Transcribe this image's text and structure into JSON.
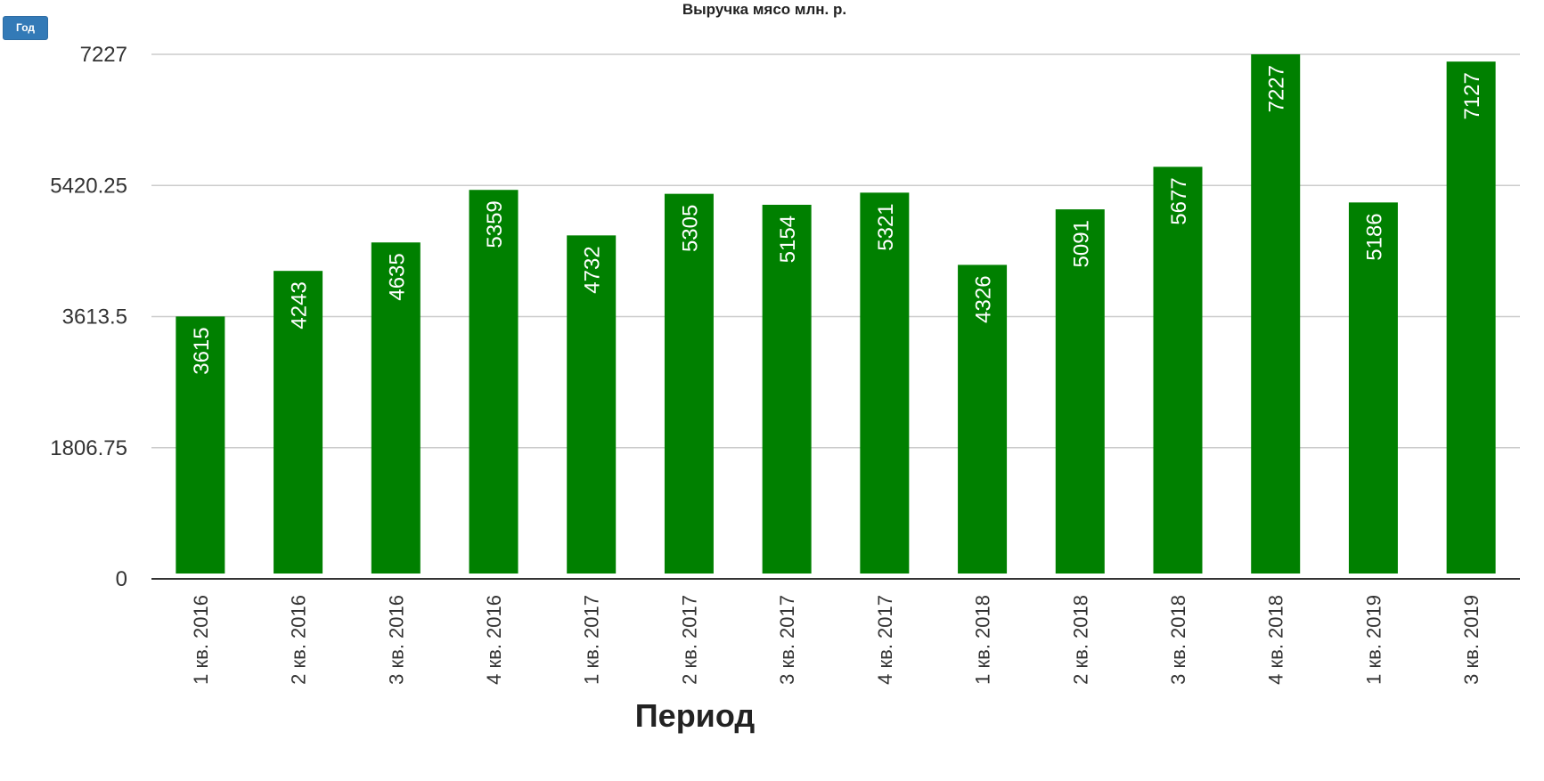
{
  "controls": {
    "period_button_label": "Год"
  },
  "colors": {
    "bar": "#008000",
    "grid": "#cccccc",
    "axis": "#333333",
    "data_label": "#ffffff"
  },
  "chart_data": {
    "type": "bar",
    "title": "Выручка мясо млн. р.",
    "xlabel": "Период",
    "ylabel": "",
    "categories": [
      "1 кв. 2016",
      "2 кв. 2016",
      "3 кв. 2016",
      "4 кв. 2016",
      "1 кв. 2017",
      "2 кв. 2017",
      "3 кв. 2017",
      "4 кв. 2017",
      "1 кв. 2018",
      "2 кв. 2018",
      "3 кв. 2018",
      "4 кв. 2018",
      "1 кв. 2019",
      "3 кв. 2019"
    ],
    "values": [
      3615,
      4243,
      4635,
      5359,
      4732,
      5305,
      5154,
      5321,
      4326,
      5091,
      5677,
      7227,
      5186,
      7127
    ],
    "ylim": [
      0,
      7227
    ],
    "yticks": [
      0,
      1806.75,
      3613.5,
      5420.25,
      7227
    ],
    "ytick_labels": [
      "0",
      "1806.75",
      "3613.5",
      "5420.25",
      "7227"
    ],
    "grid": true,
    "legend": "none",
    "data_labels": "inside-top-rotated"
  }
}
